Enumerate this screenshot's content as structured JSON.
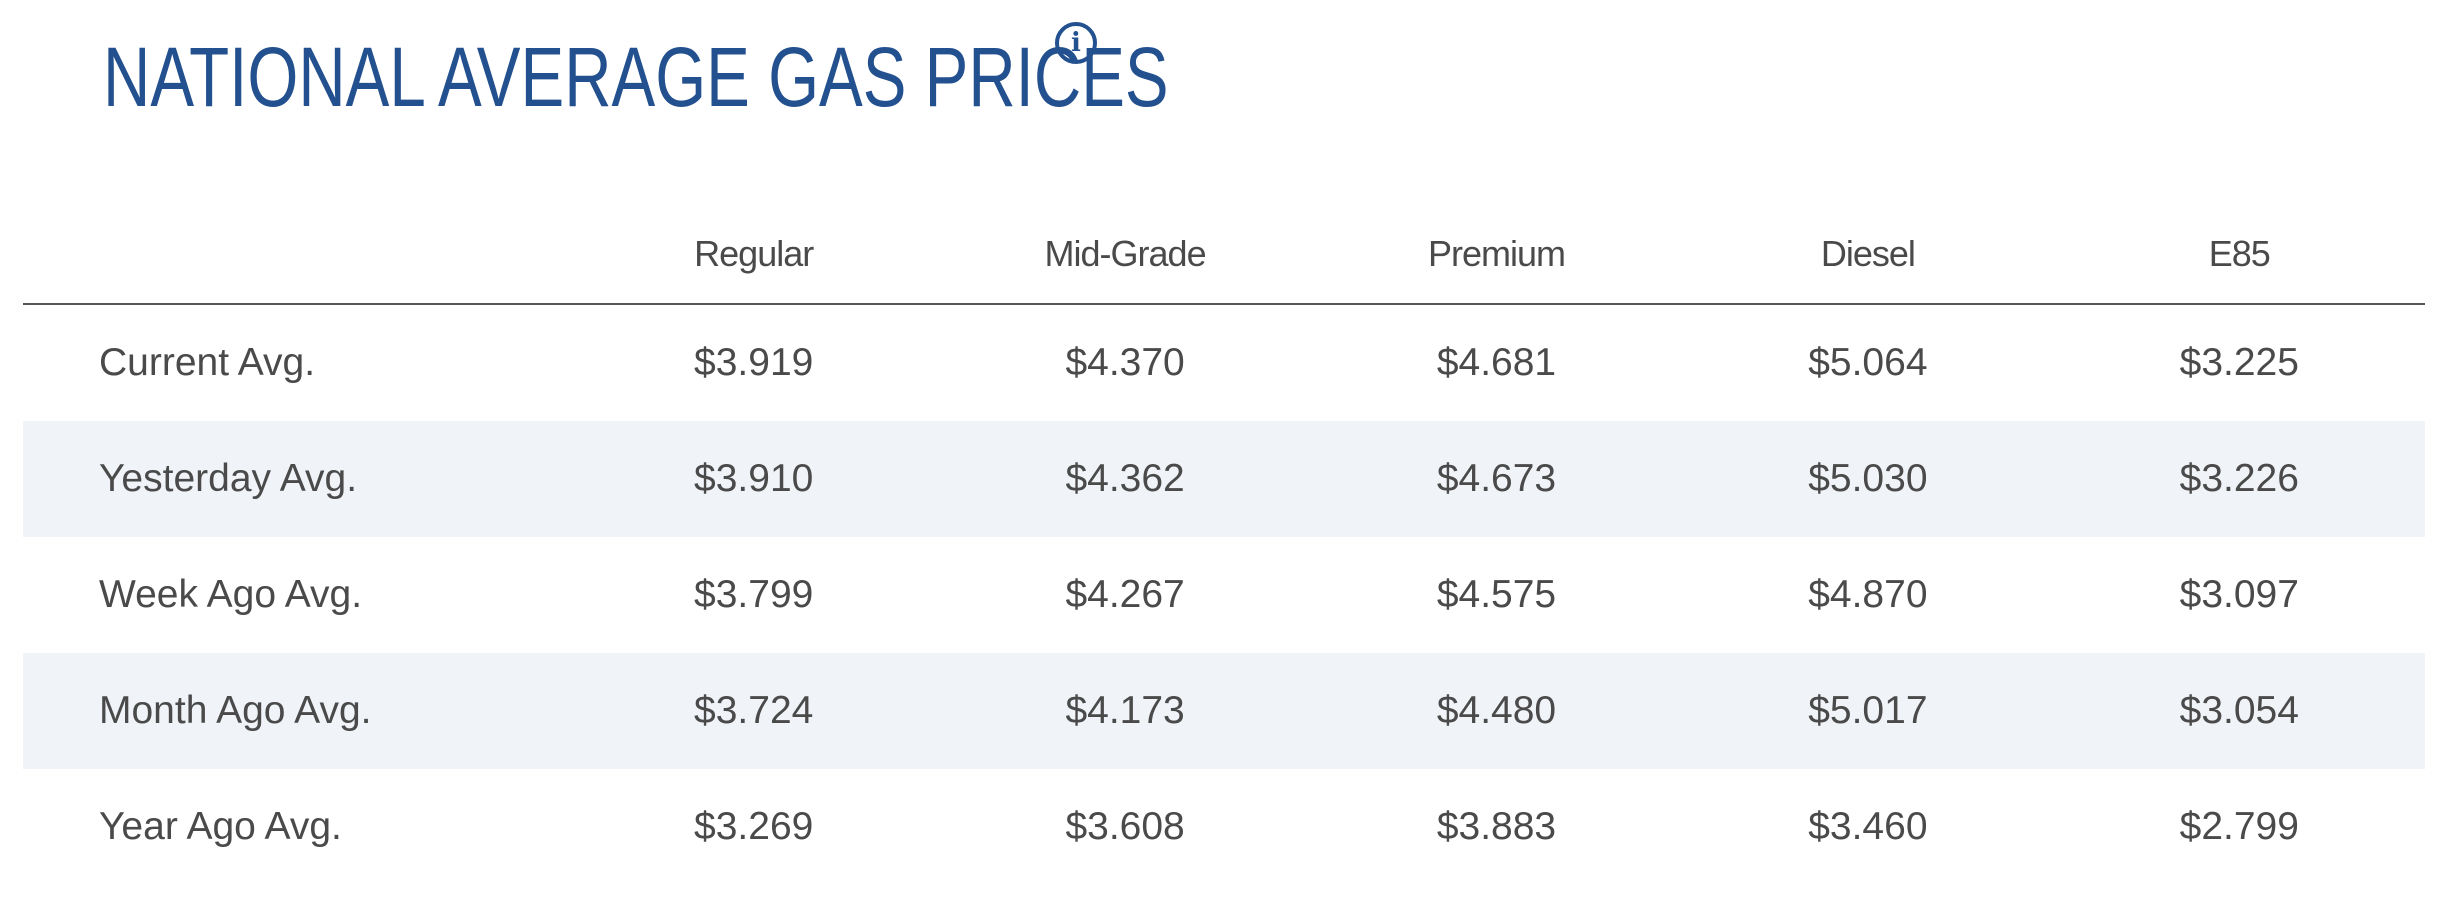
{
  "header": {
    "title": "NATIONAL AVERAGE GAS PRICES",
    "info_icon": "info-circle-icon",
    "info_glyph": "i",
    "accent_color": "#23508e"
  },
  "table": {
    "columns": [
      "",
      "Regular",
      "Mid-Grade",
      "Premium",
      "Diesel",
      "E85"
    ],
    "rows": [
      {
        "label": "Current Avg.",
        "values": [
          "$3.919",
          "$4.370",
          "$4.681",
          "$5.064",
          "$3.225"
        ]
      },
      {
        "label": "Yesterday Avg.",
        "values": [
          "$3.910",
          "$4.362",
          "$4.673",
          "$5.030",
          "$3.226"
        ]
      },
      {
        "label": "Week Ago Avg.",
        "values": [
          "$3.799",
          "$4.267",
          "$4.575",
          "$4.870",
          "$3.097"
        ]
      },
      {
        "label": "Month Ago Avg.",
        "values": [
          "$3.724",
          "$4.173",
          "$4.480",
          "$5.017",
          "$3.054"
        ]
      },
      {
        "label": "Year Ago Avg.",
        "values": [
          "$3.269",
          "$3.608",
          "$3.883",
          "$3.460",
          "$2.799"
        ]
      }
    ],
    "stripe_color": "#f0f3f8",
    "text_color": "#4a4a4a"
  }
}
